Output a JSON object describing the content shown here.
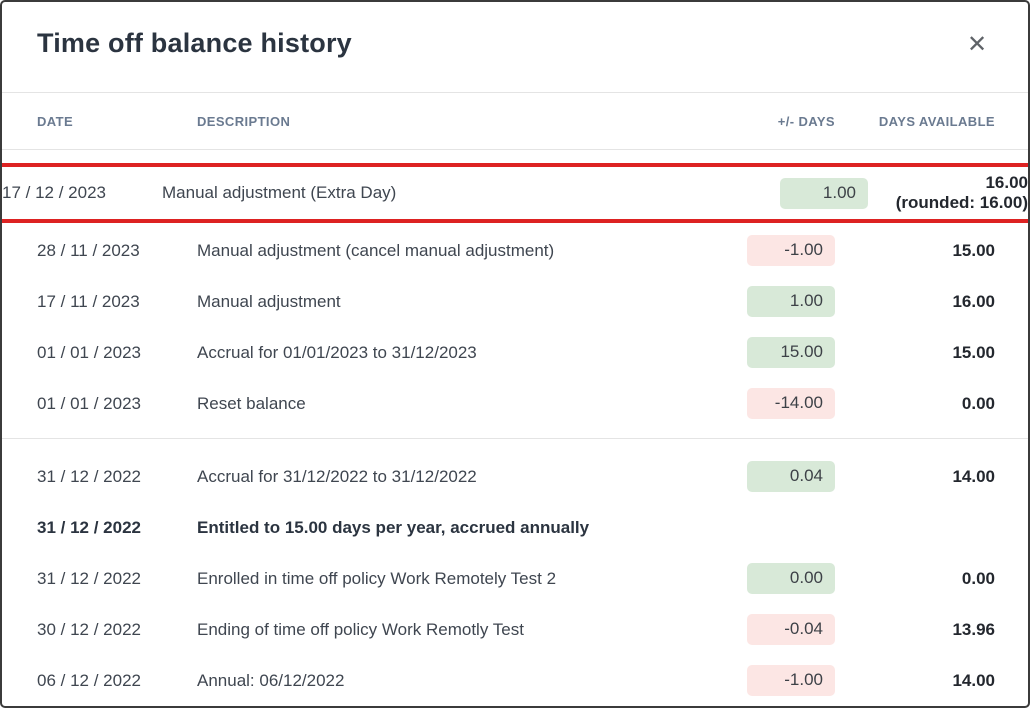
{
  "modal": {
    "title": "Time off balance history",
    "close_icon": "✕"
  },
  "table": {
    "headers": {
      "date": "DATE",
      "description": "DESCRIPTION",
      "delta": "+/- DAYS",
      "available": "DAYS AVAILABLE"
    },
    "rows": [
      {
        "date": "17 / 12 / 2023",
        "description": "Manual adjustment (Extra Day)",
        "delta": "1.00",
        "delta_type": "positive",
        "available": "16.00",
        "available_note": "(rounded: 16.00)",
        "highlighted": true
      },
      {
        "date": "28 / 11 / 2023",
        "description": "Manual adjustment (cancel manual adjustment)",
        "delta": "-1.00",
        "delta_type": "negative",
        "available": "15.00"
      },
      {
        "date": "17 / 11 / 2023",
        "description": "Manual adjustment",
        "delta": "1.00",
        "delta_type": "positive",
        "available": "16.00"
      },
      {
        "date": "01 / 01 / 2023",
        "description": "Accrual for 01/01/2023 to 31/12/2023",
        "delta": "15.00",
        "delta_type": "positive",
        "available": "15.00"
      },
      {
        "date": "01 / 01 / 2023",
        "description": "Reset balance",
        "delta": "-14.00",
        "delta_type": "negative",
        "available": "0.00"
      },
      {
        "divider": true
      },
      {
        "date": "31 / 12 / 2022",
        "description": "Accrual for 31/12/2022 to 31/12/2022",
        "delta": "0.04",
        "delta_type": "positive",
        "available": "14.00"
      },
      {
        "date": "31 / 12 / 2022",
        "description": "Entitled to 15.00 days per year, accrued annually",
        "bold": true
      },
      {
        "date": "31 / 12 / 2022",
        "description": "Enrolled in time off policy Work Remotely Test 2",
        "delta": "0.00",
        "delta_type": "positive",
        "available": "0.00"
      },
      {
        "date": "30 / 12 / 2022",
        "description": "Ending of time off policy Work Remotly Test",
        "delta": "-0.04",
        "delta_type": "negative",
        "available": "13.96"
      },
      {
        "date": "06 / 12 / 2022",
        "description": "Annual: 06/12/2022",
        "delta": "-1.00",
        "delta_type": "negative",
        "available": "14.00"
      }
    ]
  },
  "colors": {
    "title_text": "#2b3440",
    "header_text": "#6a7a90",
    "body_text": "#3f4650",
    "value_text": "#23272e",
    "positive_badge_bg": "#d8e9d8",
    "negative_badge_bg": "#fce6e4",
    "highlight_border": "#dd2222",
    "divider": "#e4e4e4",
    "close_icon": "#5f6368",
    "modal_border": "#3b3b3b"
  }
}
